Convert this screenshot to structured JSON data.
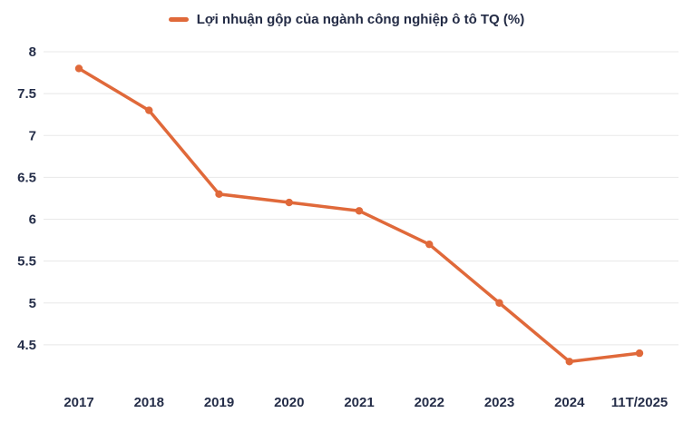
{
  "chart_data": {
    "type": "line",
    "categories": [
      "2017",
      "2018",
      "2019",
      "2020",
      "2021",
      "2022",
      "2023",
      "2024",
      "11T/2025"
    ],
    "series": [
      {
        "name": "Lợi nhuận gộp của ngành công nghiệp ô tô TQ (%)",
        "values": [
          7.8,
          7.3,
          6.3,
          6.2,
          6.1,
          5.7,
          5.0,
          4.3,
          4.4
        ]
      }
    ],
    "title": "",
    "xlabel": "",
    "ylabel": "",
    "ylim": [
      4,
      8
    ],
    "yticks": [
      4.5,
      5,
      5.5,
      6,
      6.5,
      7,
      7.5,
      8
    ],
    "grid": true,
    "legend_position": "top",
    "colors": {
      "line": "#E0693A",
      "point": "#E0693A",
      "grid": "#e8e8e8",
      "text": "#252e49"
    }
  }
}
